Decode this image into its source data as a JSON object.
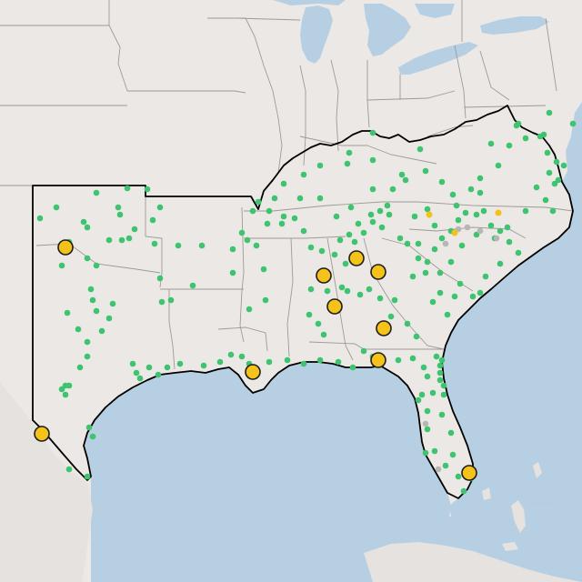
{
  "map": {
    "colors": {
      "land": "#ece8e5",
      "water": "#b7cfe2",
      "state_border": "#9e9a96",
      "region_outline": "#000000",
      "small_green": "#3dc46f",
      "small_yellow": "#f3c215",
      "small_gray": "#b6b6b6",
      "large_marker_fill": "#f4c218",
      "large_marker_stroke": "#1c1c1c"
    },
    "marker_categories": [
      {
        "name": "green",
        "symbol": "small-dot",
        "count": 186
      },
      {
        "name": "yellow",
        "symbol": "small-dot",
        "count": 3
      },
      {
        "name": "gray",
        "symbol": "small-dot",
        "count": 7
      },
      {
        "name": "yellow-large",
        "symbol": "large-circle",
        "count": 12
      }
    ]
  }
}
